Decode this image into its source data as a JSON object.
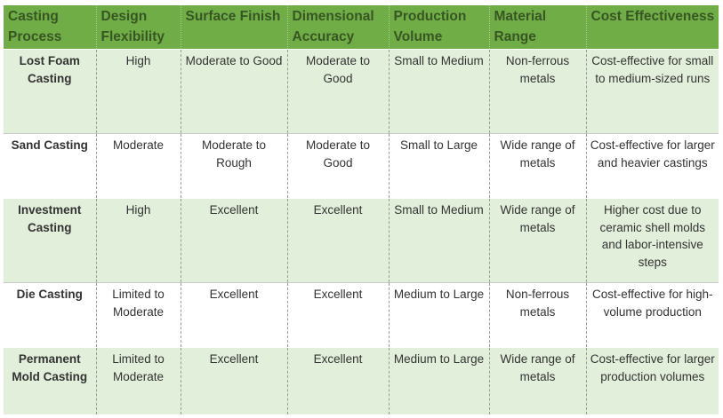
{
  "headers": [
    "Casting Process",
    "Design Flexibility",
    "Surface Finish",
    "Dimensional Accuracy",
    "Production Volume",
    "Material Range",
    "Cost Effectiveness"
  ],
  "rows": [
    [
      "Lost Foam Casting",
      "High",
      "Moderate to Good",
      "Moderate to Good",
      "Small to Medium",
      "Non-ferrous metals",
      "Cost-effective for small to medium-sized runs"
    ],
    [
      "Sand Casting",
      "Moderate",
      "Moderate to Rough",
      "Moderate to Good",
      "Small to Large",
      "Wide range of metals",
      "Cost-effective for larger and heavier castings"
    ],
    [
      "Investment Casting",
      "High",
      "Excellent",
      "Excellent",
      "Small to Medium",
      "Wide range of metals",
      "Higher cost due to ceramic shell molds and labor-intensive steps"
    ],
    [
      "Die Casting",
      "Limited to Moderate",
      "Excellent",
      "Excellent",
      "Medium to Large",
      "Non-ferrous metals",
      "Cost-effective for high-volume production"
    ],
    [
      "Permanent Mold Casting",
      "Limited to Moderate",
      "Excellent",
      "Excellent",
      "Medium to Large",
      "Wide range of metals",
      "Cost-effective for larger production volumes"
    ]
  ],
  "colors": {
    "header_bg": "#70ad47",
    "header_text": "#375623",
    "band_bg": "#e2efda"
  }
}
